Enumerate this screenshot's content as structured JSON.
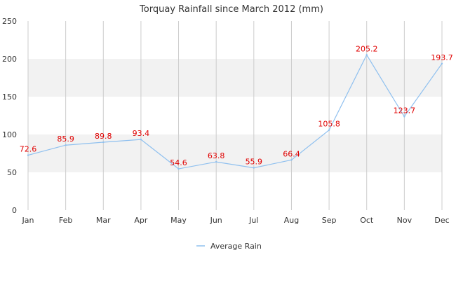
{
  "chart_data": {
    "type": "line",
    "title": "Torquay Rainfall since March 2012 (mm)",
    "categories": [
      "Jan",
      "Feb",
      "Mar",
      "Apr",
      "May",
      "Jun",
      "Jul",
      "Aug",
      "Sep",
      "Oct",
      "Nov",
      "Dec"
    ],
    "series": [
      {
        "name": "Average Rain",
        "values": [
          72.6,
          85.9,
          89.8,
          93.4,
          54.6,
          63.8,
          55.9,
          66.4,
          105.8,
          205.2,
          123.7,
          193.7
        ]
      }
    ],
    "data_labels": [
      "72.6",
      "85.9",
      "89.8",
      "93.4",
      "54.6",
      "63.8",
      "55.9",
      "66.4",
      "105.8",
      "205.2",
      "123.7",
      "193.7"
    ],
    "y_ticks": [
      0,
      50,
      100,
      150,
      200,
      250
    ],
    "ylim": [
      0,
      250
    ],
    "grid": true,
    "legend_position": "bottom",
    "colors": {
      "line": "#8fc0ef",
      "data_label": "#e00000",
      "band": "#f2f2f2",
      "grid_vertical": "#cccccc",
      "axis_text": "#333333"
    }
  }
}
